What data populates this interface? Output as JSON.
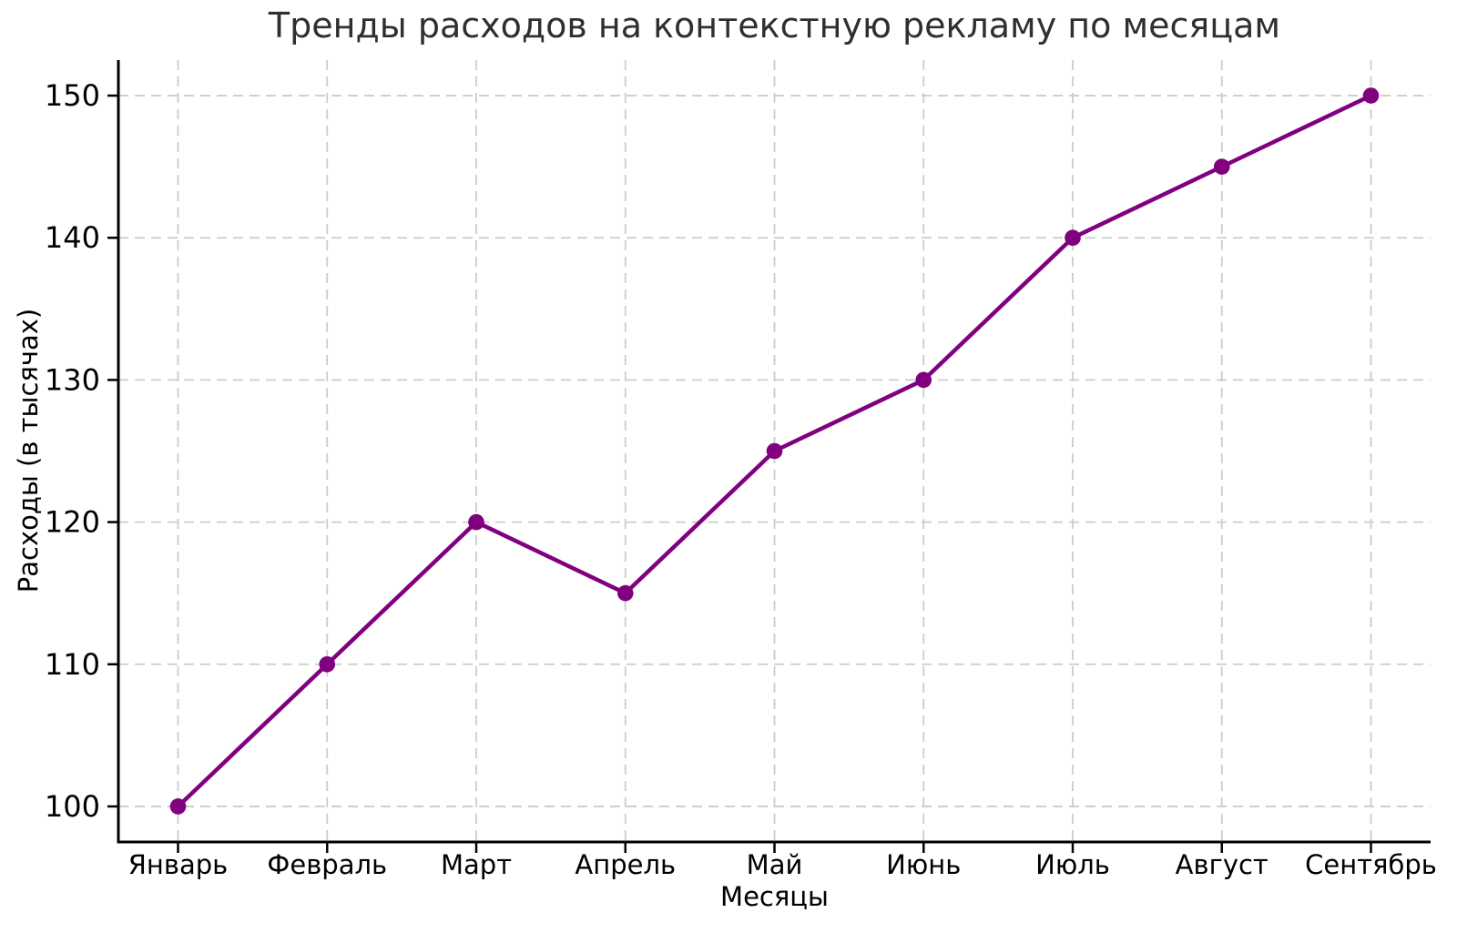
{
  "chart_data": {
    "type": "line",
    "title": "Тренды расходов на контекстную рекламу по месяцам",
    "xlabel": "Месяцы",
    "ylabel": "Расходы (в тысячах)",
    "categories": [
      "Январь",
      "Февраль",
      "Март",
      "Апрель",
      "Май",
      "Июнь",
      "Июль",
      "Август",
      "Сентябрь"
    ],
    "series": [
      {
        "name": "Расходы",
        "values": [
          100,
          110,
          120,
          115,
          125,
          130,
          140,
          145,
          150
        ]
      }
    ],
    "yticks": [
      100,
      110,
      120,
      130,
      140,
      150
    ],
    "ylim": [
      97.5,
      152.5
    ],
    "xlim": [
      -0.4,
      8.4
    ],
    "grid": "dashed",
    "legend_position": "none",
    "marker": "circle",
    "colors": {
      "line": "#800080",
      "marker": "#800080",
      "grid": "#cccccc",
      "axis": "#000000",
      "tick_label": "#000000",
      "title": "#2f2f2f",
      "background": "#ffffff"
    }
  }
}
